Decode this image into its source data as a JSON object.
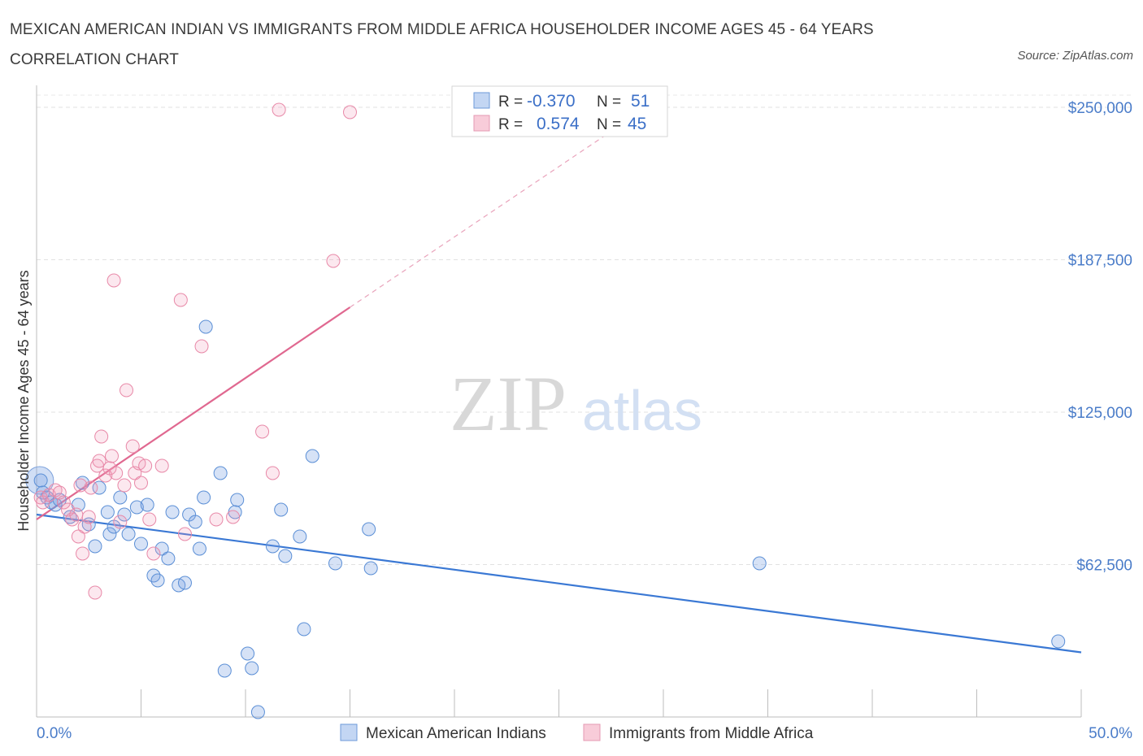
{
  "title": "MEXICAN AMERICAN INDIAN VS IMMIGRANTS FROM MIDDLE AFRICA HOUSEHOLDER INCOME AGES 45 - 64 YEARS CORRELATION CHART",
  "source": "Source: ZipAtlas.com",
  "watermark": {
    "zip": "ZIP",
    "atlas": "atlas"
  },
  "colors": {
    "blue": "#5b8fd6",
    "blue_line": "#3a78d4",
    "pink": "#e889a8",
    "pink_line": "#e06890",
    "axis_text": "#4a7cc9"
  },
  "stats": {
    "r_label": "R =",
    "n_label": "N =",
    "series": [
      {
        "r": "-0.370",
        "n": "51"
      },
      {
        "r": "0.574",
        "n": "45"
      }
    ]
  },
  "chart_data": {
    "type": "scatter",
    "title": "MEXICAN AMERICAN INDIAN VS IMMIGRANTS FROM MIDDLE AFRICA HOUSEHOLDER INCOME AGES 45 - 64 YEARS CORRELATION CHART",
    "xlabel": "",
    "ylabel": "Householder Income Ages 45 - 64 years",
    "xlim": [
      0,
      50
    ],
    "ylim": [
      0,
      255000
    ],
    "x_tick_labels": [
      "0.0%",
      "50.0%"
    ],
    "y_ticks": [
      62500,
      125000,
      187500,
      250000
    ],
    "y_tick_labels": [
      "$62,500",
      "$125,000",
      "$187,500",
      "$250,000"
    ],
    "grid": true,
    "legend_position": "bottom",
    "series": [
      {
        "name": "Mexican American Indians",
        "color": "#5b8fd6",
        "trend": {
          "x": [
            0,
            50
          ],
          "y": [
            83000,
            26500
          ]
        },
        "points": [
          [
            0.2,
            97000
          ],
          [
            0.3,
            92000
          ],
          [
            0.5,
            90000
          ],
          [
            0.7,
            88000
          ],
          [
            0.9,
            87000
          ],
          [
            1.1,
            89000
          ],
          [
            1.6,
            82000
          ],
          [
            2.0,
            87000
          ],
          [
            2.2,
            96000
          ],
          [
            2.5,
            79000
          ],
          [
            2.8,
            70000
          ],
          [
            3.0,
            94000
          ],
          [
            3.4,
            84000
          ],
          [
            3.5,
            75000
          ],
          [
            3.7,
            78000
          ],
          [
            4.0,
            90000
          ],
          [
            4.2,
            83000
          ],
          [
            4.4,
            75000
          ],
          [
            4.8,
            86000
          ],
          [
            5.0,
            71000
          ],
          [
            5.3,
            87000
          ],
          [
            5.6,
            58000
          ],
          [
            5.8,
            56000
          ],
          [
            6.0,
            69000
          ],
          [
            6.3,
            65000
          ],
          [
            6.5,
            84000
          ],
          [
            6.8,
            54000
          ],
          [
            7.1,
            55000
          ],
          [
            7.3,
            83000
          ],
          [
            7.6,
            80000
          ],
          [
            7.8,
            69000
          ],
          [
            8.0,
            90000
          ],
          [
            8.1,
            160000
          ],
          [
            8.8,
            100000
          ],
          [
            9.0,
            19000
          ],
          [
            9.5,
            84000
          ],
          [
            9.6,
            89000
          ],
          [
            10.1,
            26000
          ],
          [
            10.3,
            20000
          ],
          [
            10.6,
            2000
          ],
          [
            11.3,
            70000
          ],
          [
            11.7,
            85000
          ],
          [
            11.9,
            66000
          ],
          [
            12.6,
            74000
          ],
          [
            12.8,
            36000
          ],
          [
            13.2,
            107000
          ],
          [
            14.3,
            63000
          ],
          [
            15.9,
            77000
          ],
          [
            16.0,
            61000
          ],
          [
            34.6,
            63000
          ],
          [
            48.9,
            31000
          ]
        ]
      },
      {
        "name": "Immigrants from Middle Africa",
        "color": "#e889a8",
        "trend": {
          "x": [
            0,
            15
          ],
          "y": [
            81000,
            168000
          ],
          "extended": {
            "x": [
              15,
              28
            ],
            "y": [
              168000,
              243000
            ]
          }
        },
        "points": [
          [
            0.2,
            90000
          ],
          [
            0.3,
            88000
          ],
          [
            0.6,
            91000
          ],
          [
            0.9,
            93000
          ],
          [
            1.1,
            92000
          ],
          [
            1.3,
            88000
          ],
          [
            1.5,
            85000
          ],
          [
            1.7,
            81000
          ],
          [
            1.9,
            83000
          ],
          [
            2.0,
            74000
          ],
          [
            2.1,
            95000
          ],
          [
            2.2,
            67000
          ],
          [
            2.3,
            78000
          ],
          [
            2.5,
            82000
          ],
          [
            2.6,
            94000
          ],
          [
            2.8,
            51000
          ],
          [
            2.9,
            103000
          ],
          [
            3.0,
            105000
          ],
          [
            3.1,
            115000
          ],
          [
            3.3,
            99000
          ],
          [
            3.5,
            102000
          ],
          [
            3.6,
            107000
          ],
          [
            3.7,
            179000
          ],
          [
            3.8,
            100000
          ],
          [
            4.0,
            80000
          ],
          [
            4.2,
            95000
          ],
          [
            4.3,
            134000
          ],
          [
            4.6,
            111000
          ],
          [
            4.7,
            100000
          ],
          [
            4.9,
            104000
          ],
          [
            5.0,
            96000
          ],
          [
            5.2,
            103000
          ],
          [
            5.4,
            81000
          ],
          [
            5.6,
            67000
          ],
          [
            6.0,
            103000
          ],
          [
            6.9,
            171000
          ],
          [
            7.1,
            75000
          ],
          [
            7.9,
            152000
          ],
          [
            8.6,
            81000
          ],
          [
            9.4,
            82000
          ],
          [
            10.8,
            117000
          ],
          [
            11.3,
            100000
          ],
          [
            11.6,
            249000
          ],
          [
            14.2,
            187000
          ],
          [
            15.0,
            248000
          ]
        ]
      }
    ]
  }
}
